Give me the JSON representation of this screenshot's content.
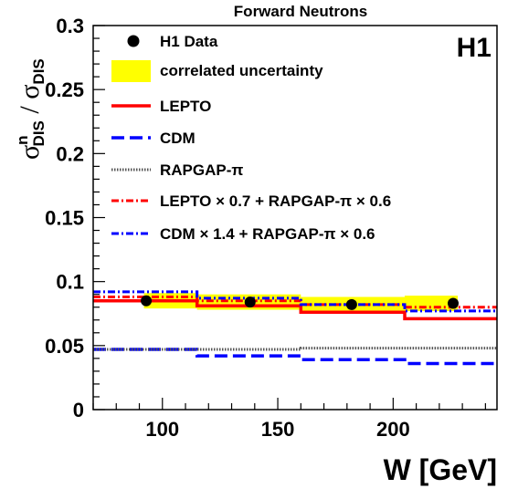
{
  "chart_data": {
    "type": "line",
    "title": "Forward Neutrons",
    "brand": "H1",
    "xlabel": "W [GeV]",
    "ylabel": {
      "main": "σ",
      "sup": "n",
      "sub": "DIS",
      "slash": " / ",
      "main2": "σ",
      "sub2": "DIS"
    },
    "xlim": [
      70,
      245
    ],
    "ylim": [
      0,
      0.3
    ],
    "x_ticks": [
      100,
      150,
      200
    ],
    "x_tick_labels": [
      "100",
      "150",
      "200"
    ],
    "y_ticks": [
      0,
      0.05,
      0.1,
      0.15,
      0.2,
      0.25,
      0.3
    ],
    "y_tick_labels": [
      "0",
      "0.05",
      "0.1",
      "0.15",
      "0.2",
      "0.25",
      "0.3"
    ],
    "grid": false,
    "legend_position": "top-left",
    "bin_edges": [
      70,
      115,
      160,
      205,
      245
    ],
    "data_points": {
      "name": "H1 Data",
      "x": [
        93,
        138,
        182,
        226
      ],
      "y": [
        0.085,
        0.084,
        0.082,
        0.083
      ],
      "color": "#000000"
    },
    "uncertainty_band": {
      "name": "correlated uncertainty",
      "color": "#ffff00",
      "x_range": [
        92,
        228
      ],
      "upper": [
        0.091,
        0.09,
        0.088,
        0.089
      ],
      "lower": [
        0.079,
        0.078,
        0.076,
        0.077
      ]
    },
    "series": [
      {
        "name": "LEPTO",
        "style": "solid",
        "color": "#ff0000",
        "values": [
          0.085,
          0.081,
          0.076,
          0.071
        ]
      },
      {
        "name": "CDM",
        "style": "dashed",
        "color": "#0000ff",
        "values": [
          0.047,
          0.042,
          0.039,
          0.036
        ]
      },
      {
        "name": "RAPGAP-π",
        "style": "dotted",
        "color": "#555555",
        "values": [
          0.047,
          0.047,
          0.048,
          0.048
        ]
      },
      {
        "name": "LEPTO × 0.7 + RAPGAP-π × 0.6",
        "style": "dashdot",
        "color": "#ff0000",
        "values": [
          0.088,
          0.085,
          0.082,
          0.08
        ]
      },
      {
        "name": "CDM × 1.4 + RAPGAP-π × 0.6",
        "style": "dashdot",
        "color": "#0000ff",
        "values": [
          0.092,
          0.087,
          0.082,
          0.077
        ]
      }
    ],
    "legend_labels": {
      "data": "H1 Data",
      "band": "correlated uncertainty",
      "lepto": "LEPTO",
      "cdm": "CDM",
      "rapgap": "RAPGAP-π",
      "mix1": "LEPTO × 0.7 + RAPGAP-π × 0.6",
      "mix2": "CDM × 1.4 + RAPGAP-π × 0.6"
    }
  }
}
